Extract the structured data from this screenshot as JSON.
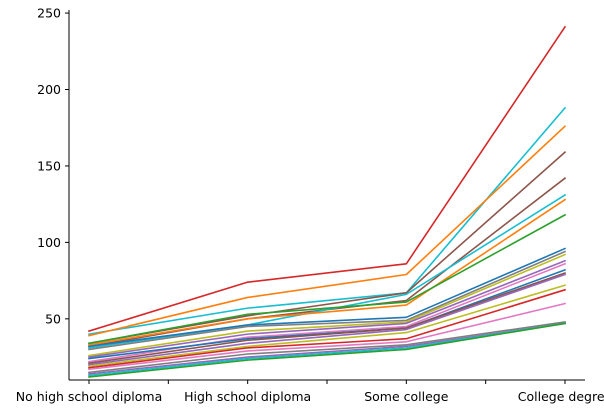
{
  "chart_data": {
    "type": "line",
    "title": "",
    "xlabel": "",
    "ylabel": "",
    "categories": [
      "No high school diploma",
      "High school diploma",
      "Some college",
      "College degree"
    ],
    "ylim": [
      10,
      252
    ],
    "yticks": [
      50,
      100,
      150,
      200,
      250
    ],
    "grid": false,
    "legend": "none",
    "series": [
      {
        "color": "#d62728",
        "values": [
          42,
          74,
          86,
          241
        ]
      },
      {
        "color": "#17becf",
        "values": [
          40,
          57,
          67,
          188
        ]
      },
      {
        "color": "#ff7f0e",
        "values": [
          39,
          64,
          79,
          176
        ]
      },
      {
        "color": "#8c564b",
        "values": [
          34,
          52,
          67,
          159
        ]
      },
      {
        "color": "#8c564b",
        "values": [
          32,
          50,
          62,
          142
        ]
      },
      {
        "color": "#17becf",
        "values": [
          31,
          46,
          66,
          131
        ]
      },
      {
        "color": "#ff7f0e",
        "values": [
          33,
          50,
          59,
          128
        ]
      },
      {
        "color": "#2ca02c",
        "values": [
          34,
          53,
          61,
          118
        ]
      },
      {
        "color": "#1f77b4",
        "values": [
          32,
          46,
          51,
          96
        ]
      },
      {
        "color": "#7f7f7f",
        "values": [
          30,
          45,
          49,
          94
        ]
      },
      {
        "color": "#bcbd22",
        "values": [
          26,
          42,
          48,
          92
        ]
      },
      {
        "color": "#9467bd",
        "values": [
          25,
          40,
          47,
          88
        ]
      },
      {
        "color": "#e377c2",
        "values": [
          22,
          38,
          45,
          86
        ]
      },
      {
        "color": "#1f77b4",
        "values": [
          24,
          37,
          44,
          82
        ]
      },
      {
        "color": "#8c564b",
        "values": [
          21,
          36,
          44,
          80
        ]
      },
      {
        "color": "#9467bd",
        "values": [
          20,
          34,
          43,
          79
        ]
      },
      {
        "color": "#bcbd22",
        "values": [
          19,
          32,
          41,
          72
        ]
      },
      {
        "color": "#d62728",
        "values": [
          18,
          31,
          37,
          69
        ]
      },
      {
        "color": "#e377c2",
        "values": [
          17,
          29,
          35,
          60
        ]
      },
      {
        "color": "#7f7f7f",
        "values": [
          15,
          27,
          33,
          48
        ]
      },
      {
        "color": "#9467bd",
        "values": [
          14,
          25,
          32,
          47
        ]
      },
      {
        "color": "#17becf",
        "values": [
          13,
          24,
          31,
          47
        ]
      },
      {
        "color": "#2ca02c",
        "values": [
          12,
          23,
          30,
          47
        ]
      }
    ]
  }
}
